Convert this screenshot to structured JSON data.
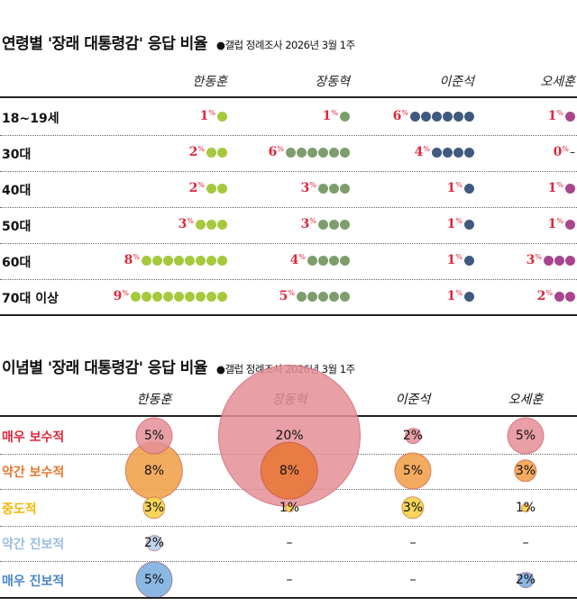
{
  "chart_data": [
    {
      "type": "dot-matrix",
      "title": "연령별 '장래 대통령감' 응답 비율",
      "source": "●갤럽 정례조사 2026년 3월 1주",
      "unit": "%",
      "candidates": [
        "한동훈",
        "장동혁",
        "이준석",
        "오세훈"
      ],
      "colors": [
        "#a4c93c",
        "#7d9e6c",
        "#3f5a7e",
        "#a9458f"
      ],
      "categories": [
        "18~19세",
        "30대",
        "40대",
        "50대",
        "60대",
        "70대 이상"
      ],
      "values": [
        [
          1,
          1,
          6,
          1
        ],
        [
          2,
          6,
          4,
          0
        ],
        [
          2,
          3,
          1,
          1
        ],
        [
          3,
          3,
          1,
          1
        ],
        [
          8,
          4,
          1,
          3
        ],
        [
          9,
          5,
          1,
          2
        ]
      ],
      "zero_mark": "–"
    },
    {
      "type": "bubble",
      "title": "이념별 '장래 대통령감' 응답 비율",
      "source": "●갤럽 정례조사 2026년 3월 1주",
      "candidates": [
        "한동훈",
        "장동혁",
        "이준석",
        "오세훈"
      ],
      "categories": [
        "매우 보수적",
        "약간 보수적",
        "중도적",
        "약간 진보적",
        "매우 진보적"
      ],
      "category_colors": [
        "#e0283c",
        "#e8772e",
        "#f2b705",
        "#9bbde0",
        "#4a86c8"
      ],
      "bubble_colors": [
        "#e58f96",
        "#f2a24f",
        "#f7d24a",
        "#b7d0ea",
        "#7fb0e0"
      ],
      "values": [
        [
          5,
          20,
          2,
          5
        ],
        [
          8,
          8,
          5,
          3
        ],
        [
          3,
          1,
          3,
          1
        ],
        [
          2,
          null,
          null,
          null
        ],
        [
          5,
          null,
          null,
          2
        ]
      ],
      "labels": [
        [
          "5%",
          "20%",
          "2%",
          "5%"
        ],
        [
          "8%",
          "8%",
          "5%",
          "3%"
        ],
        [
          "3%",
          "1%",
          "3%",
          "1%"
        ],
        [
          "2%",
          "–",
          "–",
          "–"
        ],
        [
          "5%",
          "–",
          "–",
          "2%"
        ]
      ]
    }
  ]
}
